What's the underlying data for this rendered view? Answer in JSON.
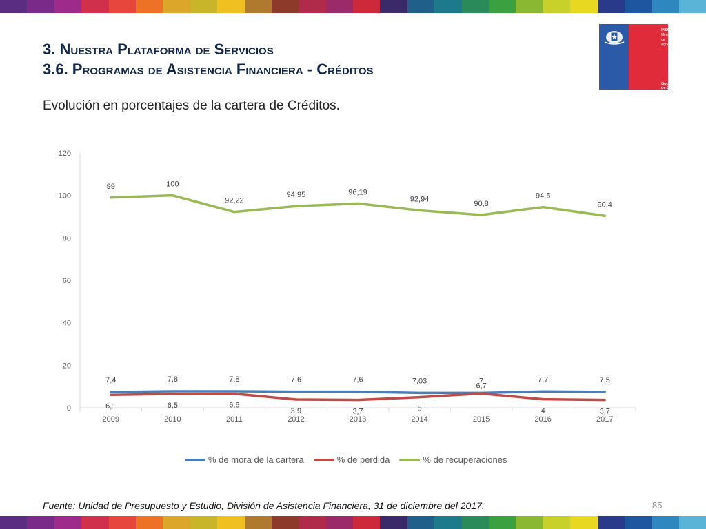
{
  "slide": {
    "title_line1": "3. Nuestra Plataforma de Servicios",
    "title_line2": "3.6. Programas de Asistencia Financiera - Créditos",
    "subtitle": "Evolución en porcentajes de la cartera de Créditos.",
    "source": "Fuente: Unidad de Presupuesto y Estudio, División de Asistencia Financiera, 31 de diciembre del 2017.",
    "page_number": "85"
  },
  "logo": {
    "name_line1": "INDAP",
    "name_line2": "Ministerio de",
    "name_line3": "Agricultura",
    "footer": "Gobierno de Chile",
    "colors": {
      "blue": "#2a5aa8",
      "red": "#e02b3a"
    }
  },
  "top_bar_colors": [
    "#5b2d82",
    "#7a2b8a",
    "#9e2a8c",
    "#d0304c",
    "#e6463c",
    "#ee7226",
    "#dca62a",
    "#c9b52a",
    "#efc020",
    "#b07a2e",
    "#8e3a2a",
    "#b02a4a",
    "#9a2a6a",
    "#cc2a3a",
    "#3b2a6a",
    "#1f5f8a",
    "#1d7a8a",
    "#2a8a5a",
    "#3aa040",
    "#8ab830",
    "#c8d02a",
    "#e8d820",
    "#2a3a8a",
    "#1f56a0",
    "#2f87c0",
    "#5ab4d8"
  ],
  "bottom_bar_colors": [
    "#5b2d82",
    "#7a2b8a",
    "#9e2a8c",
    "#d0304c",
    "#e6463c",
    "#ee7226",
    "#dca62a",
    "#c9b52a",
    "#efc020",
    "#b07a2e",
    "#8e3a2a",
    "#b02a4a",
    "#9a2a6a",
    "#cc2a3a",
    "#3b2a6a",
    "#1f5f8a",
    "#1d7a8a",
    "#2a8a5a",
    "#3aa040",
    "#8ab830",
    "#c8d02a",
    "#e8d820",
    "#2a3a8a",
    "#1f56a0",
    "#2f87c0",
    "#5ab4d8"
  ],
  "chart_data": {
    "type": "line",
    "categories": [
      "2009",
      "2010",
      "2011",
      "2012",
      "2013",
      "2014",
      "2015",
      "2016",
      "2017"
    ],
    "ylim": [
      0,
      120
    ],
    "yticks": [
      0,
      20,
      40,
      60,
      80,
      100,
      120
    ],
    "grid": false,
    "legend_position": "bottom",
    "series": [
      {
        "name": "% de mora de la cartera",
        "color": "#4a7ebb",
        "values": [
          7.4,
          7.8,
          7.8,
          7.6,
          7.6,
          7.03,
          7,
          7.7,
          7.5
        ],
        "labels": [
          "7,4",
          "7,8",
          "7,8",
          "7,6",
          "7,6",
          "7,03",
          "7",
          "7,7",
          "7,5"
        ]
      },
      {
        "name": "% de perdida",
        "color": "#be4b48",
        "values": [
          6.1,
          6.5,
          6.6,
          3.9,
          3.7,
          5,
          6.7,
          4,
          3.7
        ],
        "labels": [
          "6,1",
          "6,5",
          "6,6",
          "3,9",
          "3,7",
          "5",
          "6,7",
          "4",
          "3,7"
        ]
      },
      {
        "name": "% de recuperaciones",
        "color": "#98b954",
        "values": [
          99,
          100,
          92.22,
          94.95,
          96.19,
          92.94,
          90.8,
          94.5,
          90.4
        ],
        "labels": [
          "99",
          "100",
          "92,22",
          "94,95",
          "96,19",
          "92,94",
          "90,8",
          "94,5",
          "90,4"
        ]
      }
    ]
  }
}
